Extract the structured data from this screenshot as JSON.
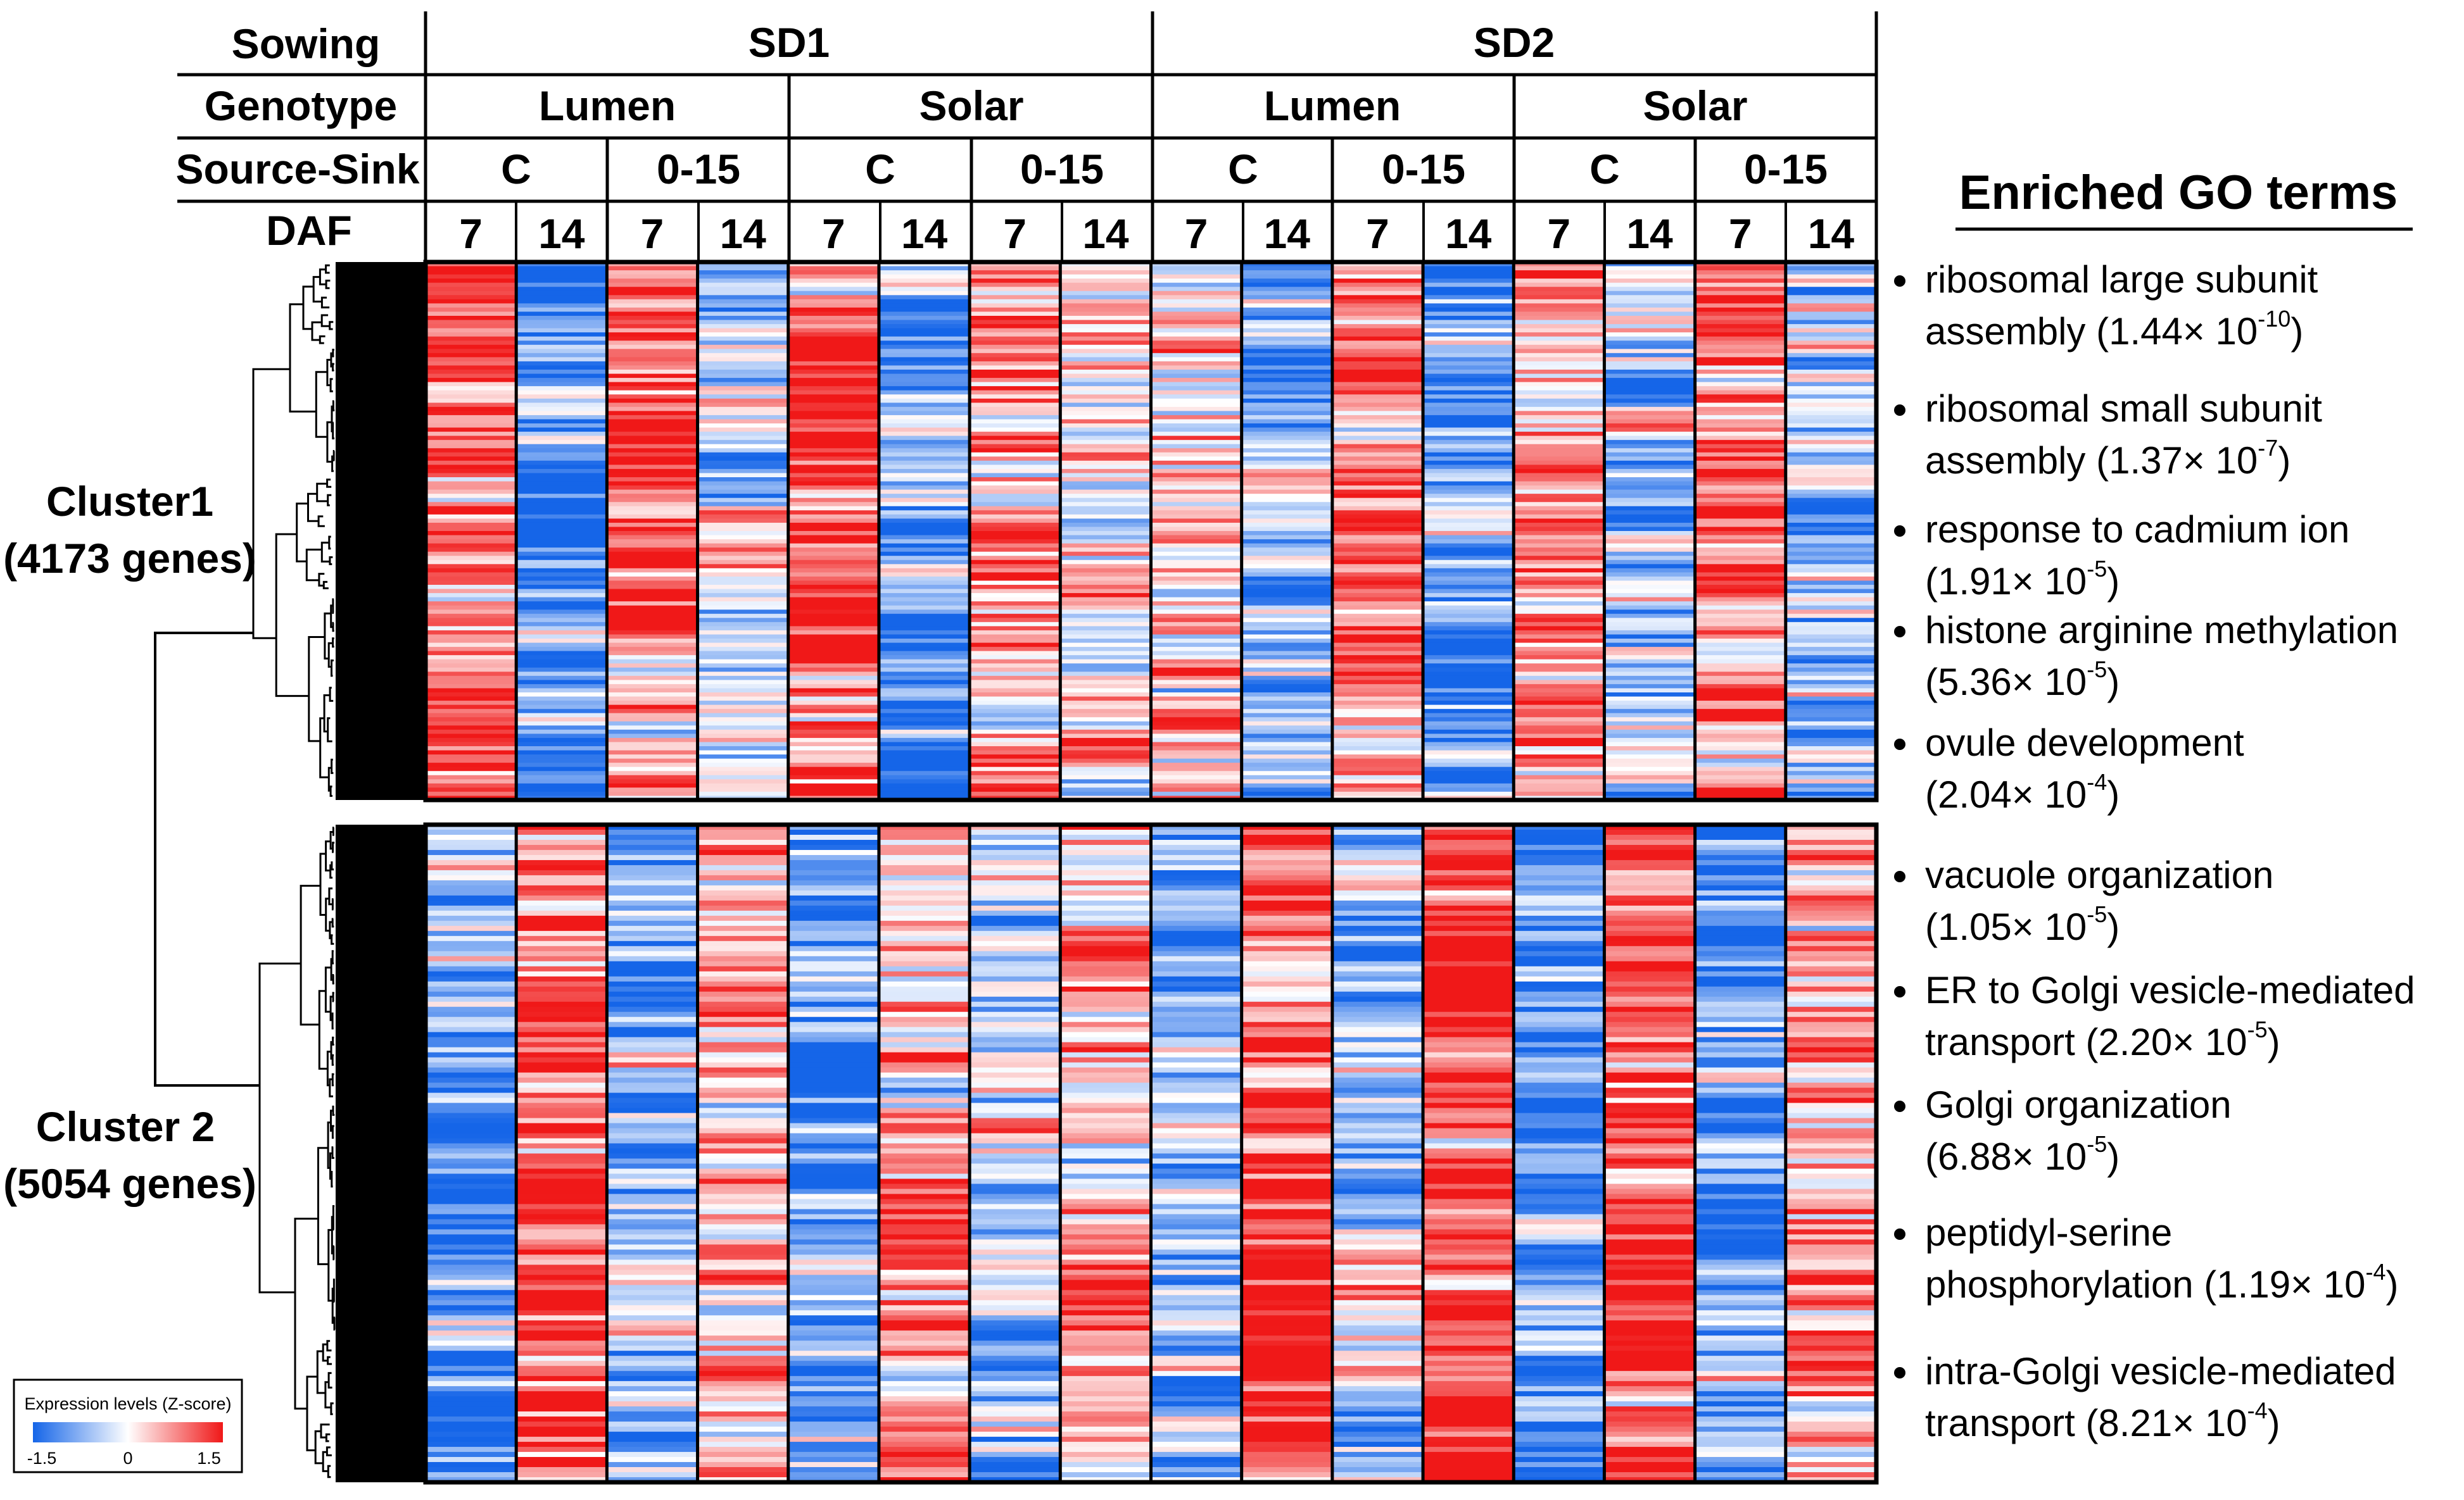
{
  "chart_data": {
    "type": "heatmap",
    "title": "",
    "header": {
      "row_labels": [
        "Sowing",
        "Genotype",
        "Source-Sink",
        "DAF"
      ],
      "sowing": [
        "SD1",
        "SD2"
      ],
      "genotype": [
        "Lumen",
        "Solar",
        "Lumen",
        "Solar"
      ],
      "source_sink": [
        "C",
        "0-15",
        "C",
        "0-15",
        "C",
        "0-15",
        "C",
        "0-15"
      ],
      "daf": [
        "7",
        "14",
        "7",
        "14",
        "7",
        "14",
        "7",
        "14",
        "7",
        "14",
        "7",
        "14",
        "7",
        "14",
        "7",
        "14"
      ]
    },
    "clusters": [
      {
        "label": "Cluster1",
        "genes": "(4173 genes)",
        "column_tendency": [
          0.6,
          -0.75,
          0.55,
          -0.15,
          0.85,
          -0.75,
          0.4,
          0.15,
          0.15,
          -0.65,
          0.45,
          -0.6,
          0.55,
          -0.45,
          0.75,
          -0.35
        ]
      },
      {
        "label": "Cluster 2",
        "genes": "(5054 genes)",
        "column_tendency": [
          -0.6,
          0.65,
          -0.45,
          0.35,
          -0.75,
          0.55,
          -0.35,
          0.35,
          -0.45,
          0.95,
          -0.25,
          0.85,
          -0.75,
          0.65,
          -0.55,
          0.35
        ]
      }
    ],
    "legend": {
      "title": "Expression levels (Z-score)",
      "min_label": "-1.5",
      "mid_label": "0",
      "max_label": "1.5",
      "range": [
        -1.5,
        1.5
      ],
      "low_color": "#1565e8",
      "mid_color": "#ffffff",
      "high_color": "#f01818"
    },
    "go_terms": {
      "heading": "Enriched GO terms",
      "cluster1": [
        {
          "line1": "ribosomal large subunit",
          "line2": "assembly (1.44× 10",
          "exp": "-10",
          "close": ")"
        },
        {
          "line1": "ribosomal small subunit",
          "line2": "assembly (1.37× 10",
          "exp": "-7",
          "close": ")"
        },
        {
          "line1": "response to cadmium ion",
          "line2": "(1.91× 10",
          "exp": "-5",
          "close": ")"
        },
        {
          "line1": "histone arginine methylation",
          "line2": "(5.36× 10",
          "exp": "-5",
          "close": ")"
        },
        {
          "line1": "ovule development",
          "line2": "(2.04× 10",
          "exp": "-4",
          "close": ")"
        }
      ],
      "cluster2": [
        {
          "line1": "vacuole organization",
          "line2": "(1.05× 10",
          "exp": "-5",
          "close": ")"
        },
        {
          "line1": "ER to Golgi vesicle-mediated",
          "line2": "transport (2.20× 10",
          "exp": "-5",
          "close": ")"
        },
        {
          "line1": "Golgi organization",
          "line2": "(6.88× 10",
          "exp": "-5",
          "close": ")"
        },
        {
          "line1": "peptidyl-serine",
          "line2": "phosphorylation (1.19× 10",
          "exp": "-4",
          "close": ")"
        },
        {
          "line1": "intra-Golgi vesicle-mediated",
          "line2": "transport (8.21× 10",
          "exp": "-4",
          "close": ")"
        }
      ]
    }
  }
}
